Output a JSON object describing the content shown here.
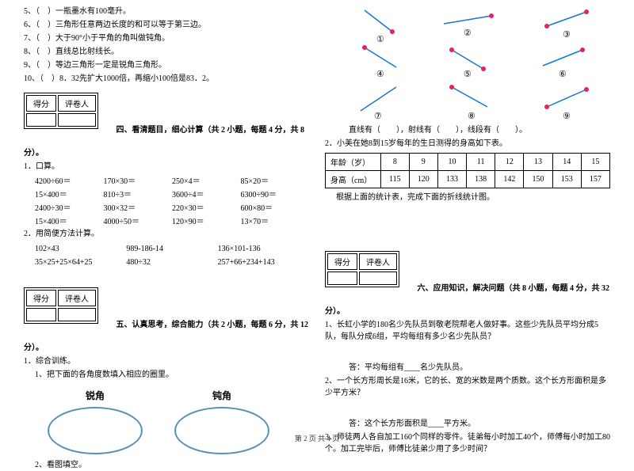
{
  "leftColumn": {
    "judgments": [
      "5、（　）一瓶墨水有100毫升。",
      "6、（　）三角形任意两边长度的和可以等于第三边。",
      "7、（　）大于90°小于平角的角叫做钝角。",
      "8、（　）直线总比射线长。",
      "9、（　）等边三角形一定是锐角三角形。",
      "10、（　）8．32先扩大1000倍，再缩小100倍是83．2。"
    ],
    "scoreHeader": [
      "得分",
      "评卷人"
    ],
    "section4Title": "四、看清题目，细心计算（共 2 小题，每题 4 分，共 8",
    "fenEnd": "分）。",
    "q1": "1．口算。",
    "calcRows": [
      [
        "4200÷60＝",
        "170×30＝",
        "250×4＝",
        "85×20＝"
      ],
      [
        "15×400＝",
        "810÷3＝",
        "3600÷4＝",
        "6300÷90＝"
      ],
      [
        "2400÷30＝",
        "300×32＝",
        "220×30＝",
        "600×80＝"
      ],
      [
        "15×400＝",
        "4000÷50＝",
        "120×90＝",
        "13×70＝"
      ]
    ],
    "q2": "2．用简便方法计算。",
    "calc2Rows": [
      [
        "102×43",
        "989-186-14",
        "136×101-136"
      ],
      [
        "35×25+25×64+25",
        "480÷32",
        "257+66+234+143"
      ]
    ],
    "section5Title": "五、认真思考，综合能力（共 2 小题，每题 6 分，共 12",
    "q5_1": "1．综合训练。",
    "q5_1_1": "1、把下面的各角度数填入相应的圈里。",
    "ovalLabels": [
      "锐角",
      "钝角"
    ],
    "q5_2": "2、看图填空。"
  },
  "rightColumn": {
    "diagLabels": [
      "①",
      "②",
      "③",
      "④",
      "⑤",
      "⑥",
      "⑦",
      "⑧",
      "⑨"
    ],
    "diagLine": "直线有（　　），射线有（　　），线段有（　　）。",
    "q2": "2．小美在她8到15岁每年的生日测得的身高如下表。",
    "table": {
      "rowHeaders": [
        "年龄（岁）",
        "身高（cm）"
      ],
      "ages": [
        "8",
        "9",
        "10",
        "11",
        "12",
        "13",
        "14",
        "15"
      ],
      "heights": [
        "115",
        "120",
        "133",
        "138",
        "142",
        "150",
        "153",
        "157"
      ]
    },
    "tableNote": "根据上面的统计表，完成下面的折线统计图。",
    "scoreHeader": [
      "得分",
      "评卷人"
    ],
    "section6Title": "六、应用知识，解决问题（共 8 小题，每题 4 分，共 32",
    "fenEnd": "分）。",
    "p1": "1、长虹小学的180名少先队员到敬老院帮老人做好事。这些少先队员平均分成5队，每队分成6组，平均每组有多少名少先队员？",
    "a1": "答：平均每组有____名少先队员。",
    "p2": "2、一个长方形周长是16米，它的长、宽的米数是两个质数。这个长方形面积是多少平方米？",
    "a2": "答：这个长方形面积是____平方米。",
    "p3": "3、师徒两人各自加工160个同样的零件。徒弟每小时加工40个，师傅每小时加工80个。加工完毕后，师傅比徒弟少用了多少时间？"
  },
  "footer": "第 2 页 共 4 页",
  "colors": {
    "dotPink": "#e91e63",
    "lineBlue": "#1976d2",
    "ovalBorder": "#5b8db8"
  }
}
